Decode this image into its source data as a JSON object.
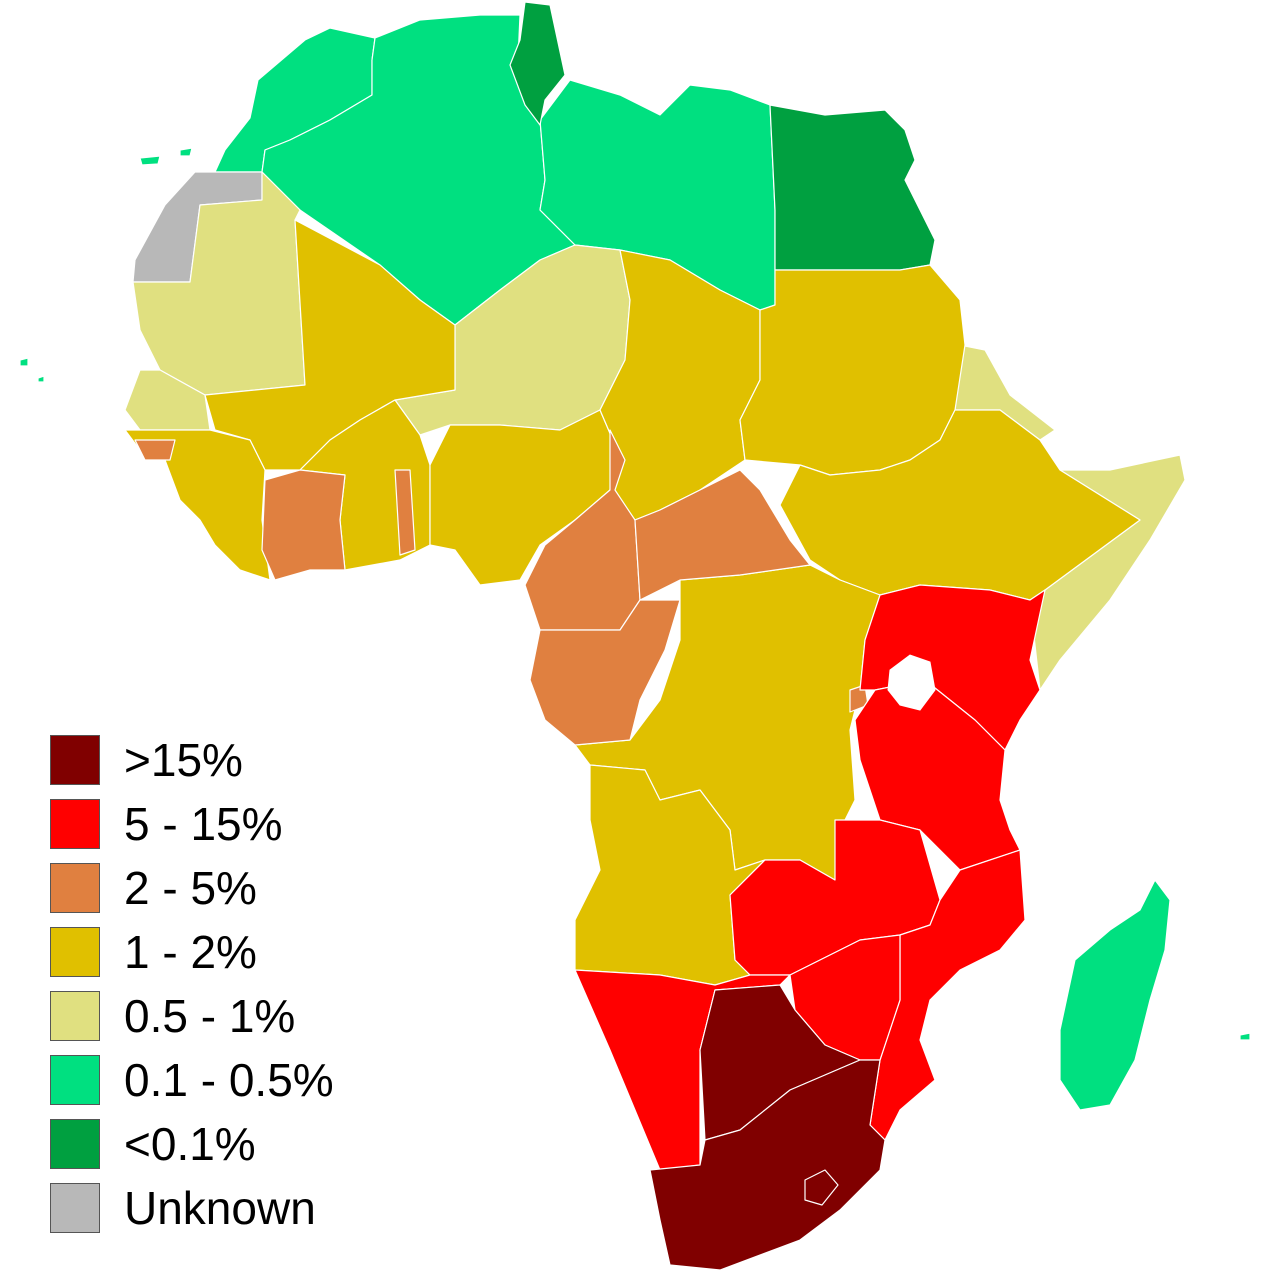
{
  "legend": {
    "items": [
      {
        "label": ">15%",
        "color": "#800000"
      },
      {
        "label": "5 - 15%",
        "color": "#ff0000"
      },
      {
        "label": "2 - 5%",
        "color": "#e08040"
      },
      {
        "label": "1 - 2%",
        "color": "#e0c000"
      },
      {
        "label": "0.5 - 1%",
        "color": "#e0e080"
      },
      {
        "label": "0.1 - 0.5%",
        "color": "#00e080"
      },
      {
        "label": "<0.1%",
        "color": "#00a040"
      },
      {
        "label": "Unknown",
        "color": "#b8b8b8"
      }
    ]
  }
}
